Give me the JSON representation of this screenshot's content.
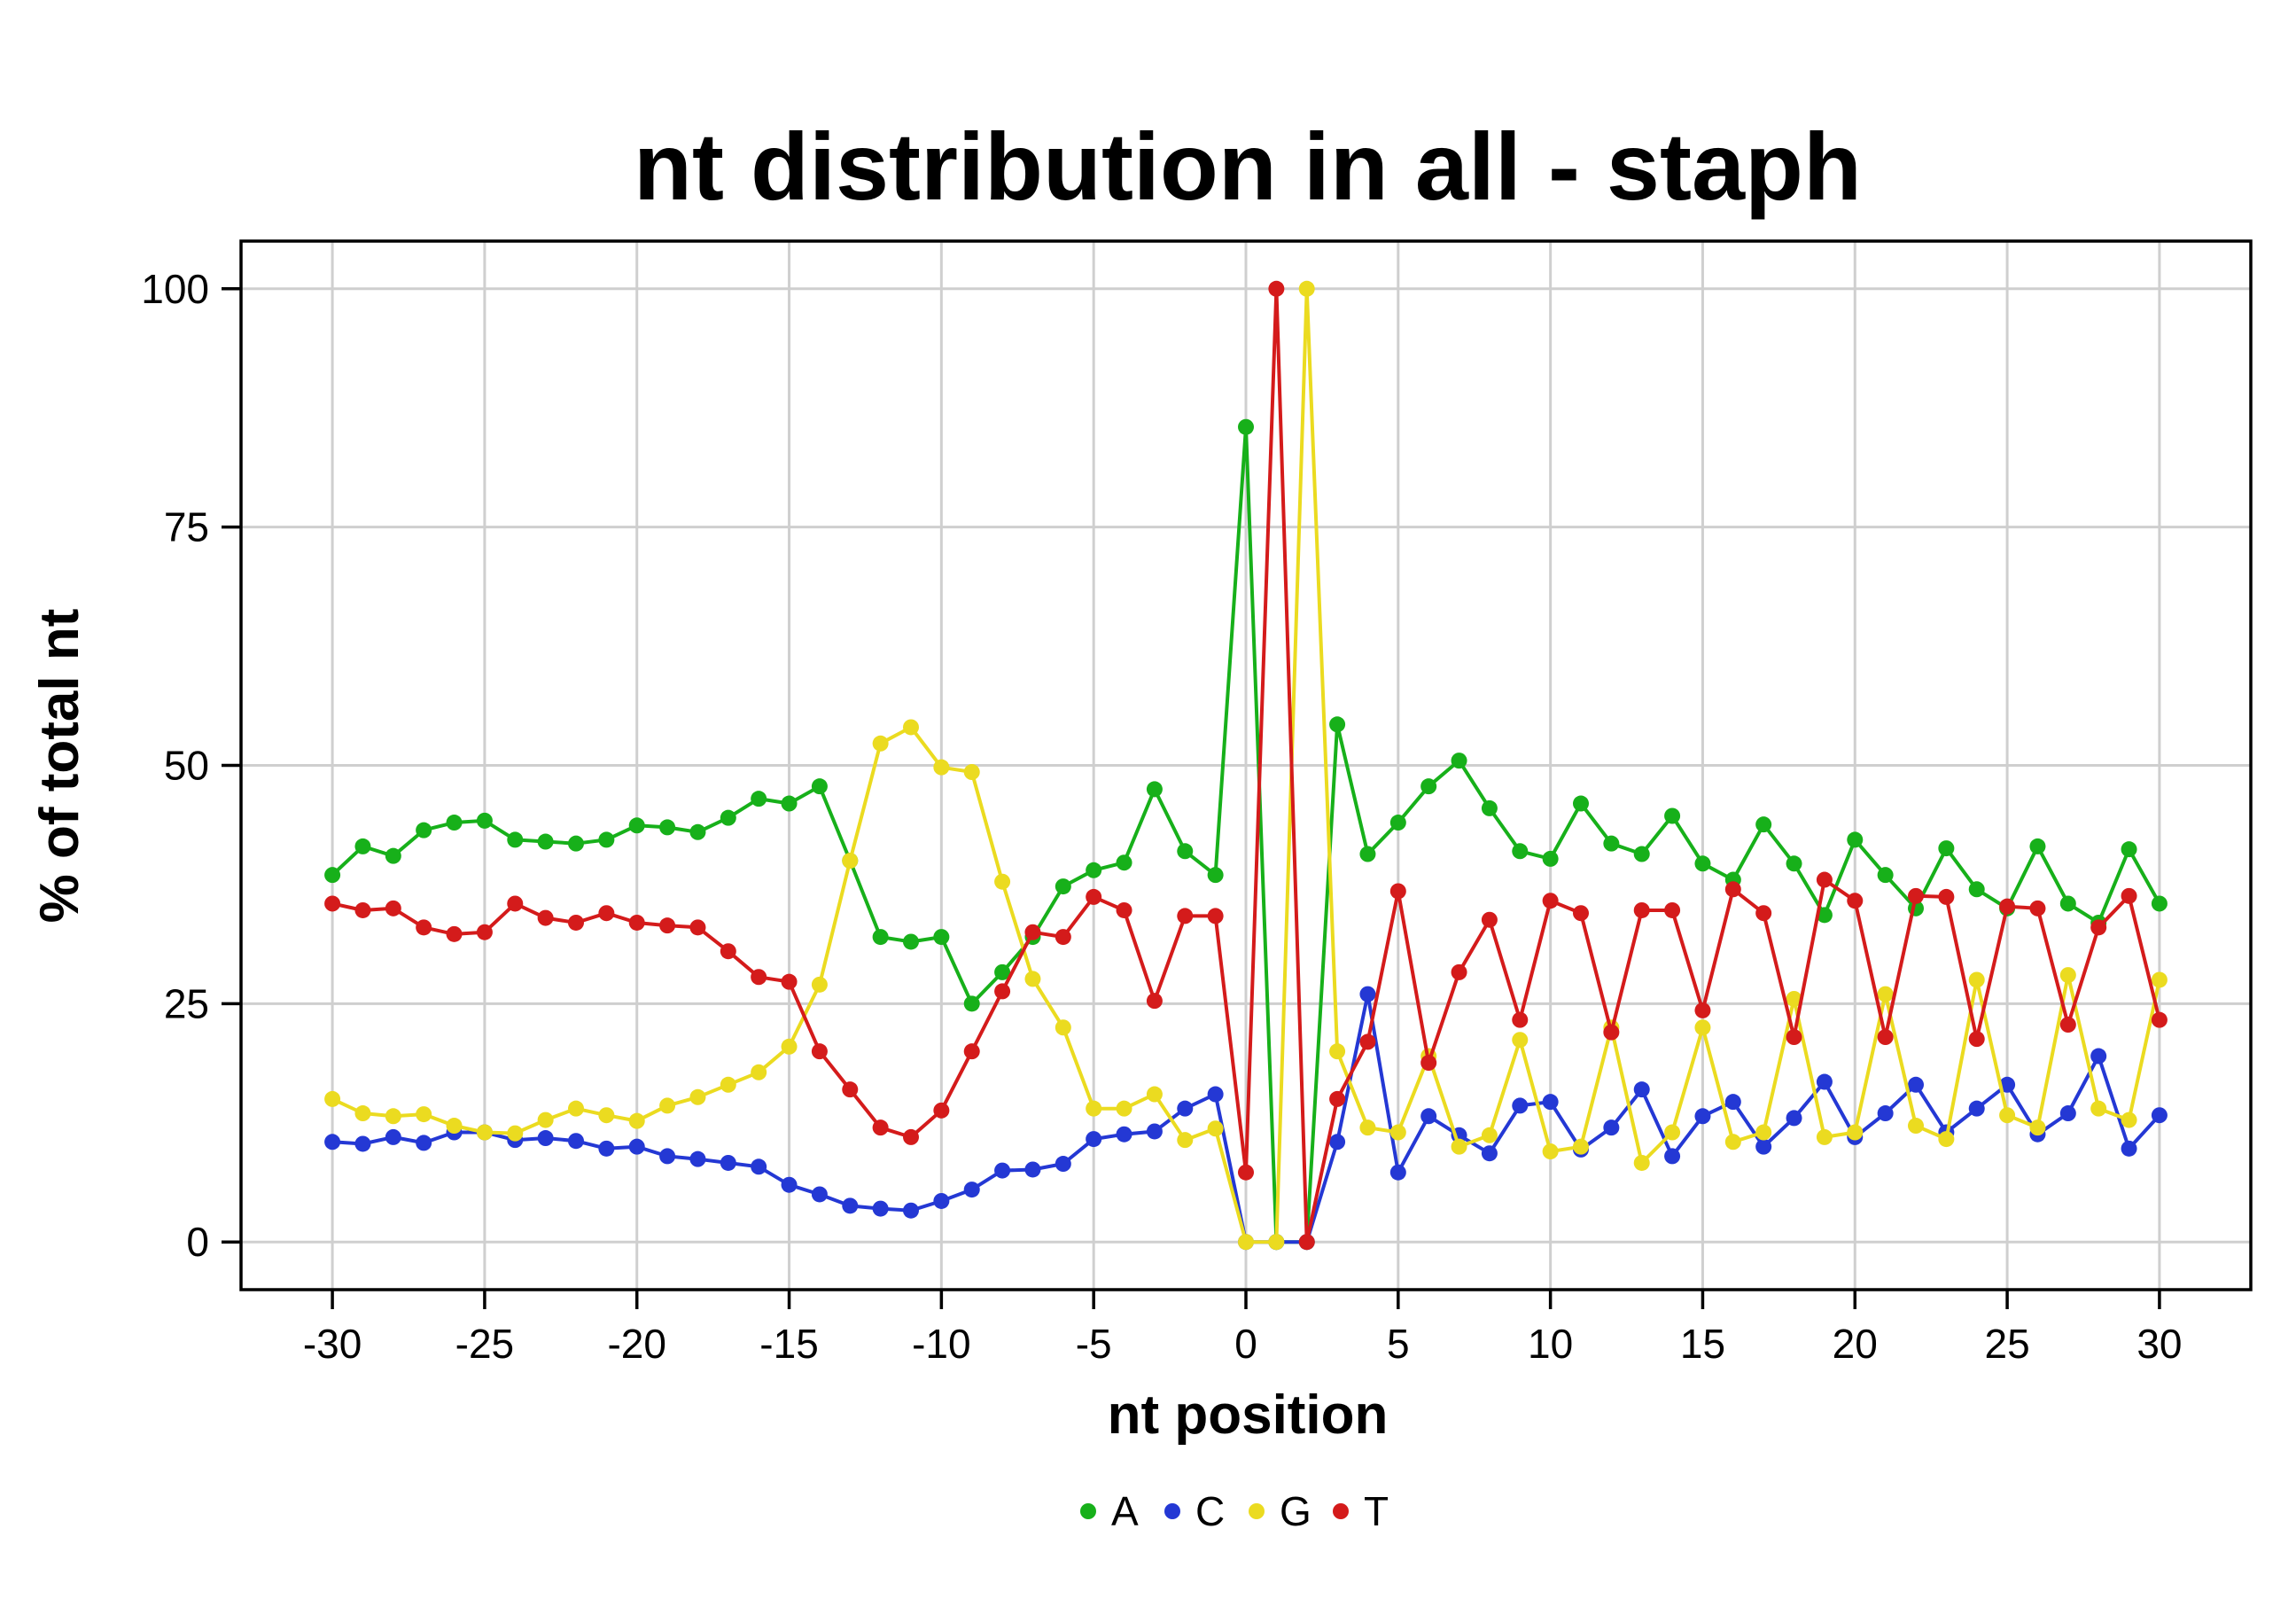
{
  "chart_data": {
    "type": "line",
    "title": "nt distribution in all - staph",
    "xlabel": "nt position",
    "ylabel": "% of total nt",
    "xlim": [
      -33,
      33
    ],
    "ylim": [
      -5,
      105
    ],
    "x_ticks": [
      -30,
      -25,
      -20,
      -15,
      -10,
      -5,
      0,
      5,
      10,
      15,
      20,
      25,
      30
    ],
    "x_tick_labels": [
      "-30",
      "-25",
      "-20",
      "-15",
      "-10",
      "-5",
      "0",
      "5",
      "10",
      "15",
      "20",
      "25",
      "30"
    ],
    "y_ticks": [
      0,
      25,
      50,
      75,
      100
    ],
    "y_tick_labels": [
      "0",
      "25",
      "50",
      "75",
      "100"
    ],
    "grid": true,
    "legend_position": "bottom",
    "x": [
      -30,
      -29,
      -28,
      -27,
      -26,
      -25,
      -24,
      -23,
      -22,
      -21,
      -20,
      -19,
      -18,
      -17,
      -16,
      -15,
      -14,
      -13,
      -12,
      -11,
      -10,
      -9,
      -8,
      -7,
      -6,
      -5,
      -4,
      -3,
      -2,
      -1,
      0,
      1,
      2,
      3,
      4,
      5,
      6,
      7,
      8,
      9,
      10,
      11,
      12,
      13,
      14,
      15,
      16,
      17,
      18,
      19,
      20,
      21,
      22,
      23,
      24,
      25,
      26,
      27,
      28,
      29,
      30
    ],
    "series": [
      {
        "name": "A",
        "color": "#17b01a",
        "values": [
          38.5,
          41.5,
          40.5,
          43.2,
          44,
          44.2,
          42.2,
          42,
          41.8,
          42.2,
          43.7,
          43.5,
          43,
          44.5,
          46.5,
          46,
          47.8,
          40,
          32,
          31.5,
          32,
          25,
          28.3,
          32,
          37.3,
          39,
          39.8,
          47.5,
          41,
          38.5,
          85.5,
          0,
          0,
          54.3,
          40.7,
          44,
          47.8,
          50.5,
          45.5,
          41,
          40.2,
          46,
          41.8,
          40.7,
          44.7,
          39.7,
          38,
          43.8,
          39.7,
          34.3,
          42.2,
          38.5,
          35,
          41.3,
          37,
          35,
          41.5,
          35.5,
          33.5,
          41.2,
          35.5
        ]
      },
      {
        "name": "C",
        "color": "#2438d4",
        "values": [
          10.5,
          10.3,
          11,
          10.4,
          11.5,
          11.5,
          10.7,
          10.9,
          10.6,
          9.8,
          10,
          9,
          8.7,
          8.3,
          7.9,
          6,
          5,
          3.8,
          3.5,
          3.3,
          4.3,
          5.5,
          7.5,
          7.6,
          8.2,
          10.8,
          11.3,
          11.6,
          14,
          15.5,
          0,
          0,
          0,
          10.5,
          26,
          7.3,
          13.2,
          11.2,
          9.3,
          14.3,
          14.7,
          9.7,
          12,
          16,
          9,
          13.2,
          14.7,
          10,
          13,
          16.8,
          11,
          13.5,
          16.5,
          11.5,
          14,
          16.5,
          11.3,
          13.5,
          19.5,
          9.8,
          13.3
        ]
      },
      {
        "name": "G",
        "color": "#ebdb20",
        "values": [
          15,
          13.5,
          13.2,
          13.4,
          12.2,
          11.5,
          11.4,
          12.8,
          14,
          13.3,
          12.7,
          14.3,
          15.2,
          16.5,
          17.8,
          20.5,
          27,
          40,
          52.3,
          54,
          49.8,
          49.3,
          37.8,
          27.6,
          22.5,
          14,
          14,
          15.5,
          10.7,
          11.9,
          0,
          0,
          100,
          20,
          12,
          11.5,
          19.5,
          10,
          11.2,
          21.2,
          9.5,
          10,
          22.5,
          8.3,
          11.5,
          22.5,
          10.5,
          11.5,
          25.5,
          11,
          11.5,
          26,
          12.2,
          10.8,
          27.5,
          13.3,
          12,
          28,
          14,
          12.8,
          27.5
        ]
      },
      {
        "name": "T",
        "color": "#d41b1b",
        "values": [
          35.5,
          34.8,
          35,
          33,
          32.3,
          32.5,
          35.5,
          34,
          33.5,
          34.5,
          33.5,
          33.2,
          33,
          30.5,
          27.8,
          27.3,
          20,
          16,
          12,
          11,
          13.8,
          20,
          26.3,
          32.5,
          32,
          36.2,
          34.8,
          25.3,
          34.2,
          34.2,
          7.3,
          100,
          0,
          15,
          21,
          36.8,
          18.8,
          28.3,
          33.8,
          23.3,
          35.8,
          34.5,
          22,
          34.8,
          34.8,
          24.3,
          37,
          34.5,
          21.5,
          38,
          35.8,
          21.5,
          36.3,
          36.2,
          21.3,
          35.2,
          35,
          22.8,
          33,
          36.3,
          23.3
        ]
      }
    ]
  }
}
